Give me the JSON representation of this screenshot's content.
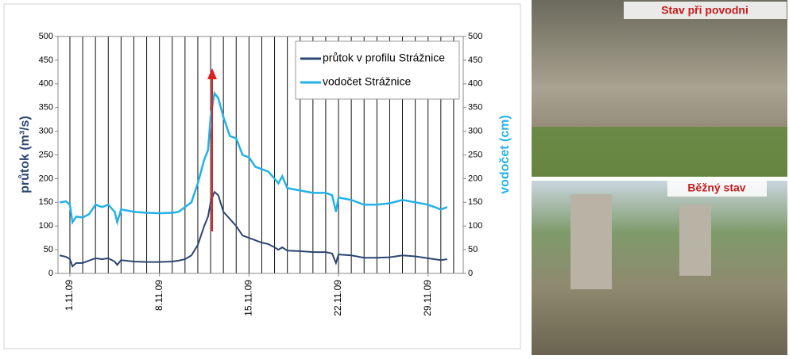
{
  "chart_data": {
    "type": "line",
    "x": [
      0.2,
      0.7,
      1.0,
      1.2,
      1.5,
      2,
      2.5,
      3,
      3.5,
      4,
      4.5,
      4.7,
      5,
      6,
      7,
      8,
      9,
      9.5,
      10,
      10.5,
      11,
      11.5,
      11.8,
      12.0,
      12.3,
      12.6,
      13,
      13.5,
      14,
      14.5,
      15,
      15.5,
      16,
      16.5,
      17,
      17.3,
      17.6,
      18,
      19,
      20,
      21,
      21.5,
      21.8,
      22,
      23,
      24,
      25,
      26,
      27,
      28,
      29,
      30,
      30.5
    ],
    "xlim": [
      0.07,
      31.75
    ],
    "xticks": [
      {
        "value": 1,
        "label": "1.11.09"
      },
      {
        "value": 8,
        "label": "8.11.09"
      },
      {
        "value": 15,
        "label": "15.11.09"
      },
      {
        "value": 22,
        "label": "22.11.09"
      },
      {
        "value": 29,
        "label": "29.11.09"
      }
    ],
    "minor_xticks": [
      1,
      2,
      3,
      4,
      5,
      6,
      7,
      8,
      9,
      10,
      11,
      12,
      13,
      14,
      15,
      16,
      17,
      18,
      19,
      20,
      21,
      22,
      23,
      24,
      25,
      26,
      27,
      28,
      29,
      30,
      31
    ],
    "ylabel": "průtok (m³/s)",
    "y2label": "vodočet (cm)",
    "ylim": [
      0,
      500
    ],
    "yticks": [
      0,
      50,
      100,
      150,
      200,
      250,
      300,
      350,
      400,
      450,
      500
    ],
    "y2lim": [
      0,
      500
    ],
    "y2ticks": [
      0,
      50,
      100,
      150,
      200,
      250,
      300,
      350,
      400,
      450,
      500
    ],
    "legend": "upper right",
    "series": [
      {
        "name": "průtok v profilu Strážnice",
        "color": "#2b4670",
        "values": [
          38,
          35,
          30,
          15,
          22,
          22,
          27,
          32,
          30,
          32,
          25,
          18,
          28,
          25,
          24,
          24,
          25,
          27,
          30,
          38,
          60,
          100,
          120,
          150,
          172,
          165,
          130,
          115,
          100,
          80,
          75,
          70,
          65,
          62,
          55,
          50,
          55,
          48,
          47,
          45,
          45,
          42,
          22,
          40,
          38,
          33,
          33,
          34,
          38,
          36,
          32,
          28,
          30
        ]
      },
      {
        "name": "vodočet Strážnice",
        "color": "#22b2e6",
        "axis": "y2",
        "values": [
          150,
          152,
          145,
          108,
          120,
          118,
          125,
          145,
          140,
          145,
          130,
          108,
          135,
          130,
          128,
          127,
          128,
          130,
          140,
          150,
          190,
          240,
          260,
          330,
          380,
          370,
          330,
          290,
          285,
          250,
          245,
          225,
          220,
          215,
          200,
          190,
          205,
          180,
          175,
          170,
          170,
          165,
          130,
          160,
          155,
          145,
          145,
          148,
          155,
          150,
          145,
          135,
          140
        ]
      }
    ]
  },
  "photos": [
    {
      "caption": "Stav při povodni"
    },
    {
      "caption": "Běžný stav"
    }
  ]
}
